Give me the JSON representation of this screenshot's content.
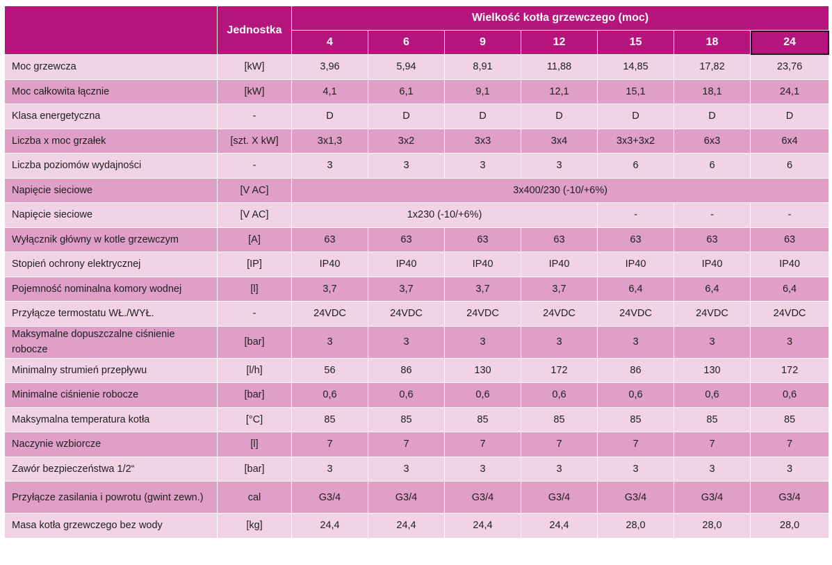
{
  "header": {
    "unit_label": "Jednostka",
    "group_label": "Wielkość kotła grzewczego (moc)",
    "sizes": [
      "4",
      "6",
      "9",
      "12",
      "15",
      "18",
      "24"
    ]
  },
  "rows": [
    {
      "name": "Moc grzewcza",
      "unit": "[kW]",
      "values": [
        "3,96",
        "5,94",
        "8,91",
        "11,88",
        "14,85",
        "17,82",
        "23,76"
      ]
    },
    {
      "name": "Moc całkowita łącznie",
      "unit": "[kW]",
      "values": [
        "4,1",
        "6,1",
        "9,1",
        "12,1",
        "15,1",
        "18,1",
        "24,1"
      ]
    },
    {
      "name": "Klasa energetyczna",
      "unit": "-",
      "values": [
        "D",
        "D",
        "D",
        "D",
        "D",
        "D",
        "D"
      ]
    },
    {
      "name": "Liczba x moc grzałek",
      "unit": "[szt. X kW]",
      "values": [
        "3x1,3",
        "3x2",
        "3x3",
        "3x4",
        "3x3+3x2",
        "6x3",
        "6x4"
      ]
    },
    {
      "name": "Liczba poziomów wydajności",
      "unit": "-",
      "values": [
        "3",
        "3",
        "3",
        "3",
        "6",
        "6",
        "6"
      ]
    },
    {
      "name": "Napięcie sieciowe",
      "unit": "[V AC]",
      "span_all": "3x400/230 (-10/+6%)"
    },
    {
      "name": "Napięcie sieciowe",
      "unit": "[V AC]",
      "span_first4": "1x230 (-10/+6%)",
      "rest": [
        "-",
        "-",
        "-"
      ]
    },
    {
      "name": "Wyłącznik główny w kotle grzewczym",
      "unit": "[A]",
      "values": [
        "63",
        "63",
        "63",
        "63",
        "63",
        "63",
        "63"
      ]
    },
    {
      "name": "Stopień ochrony elektrycznej",
      "unit": "[IP]",
      "values": [
        "IP40",
        "IP40",
        "IP40",
        "IP40",
        "IP40",
        "IP40",
        "IP40"
      ]
    },
    {
      "name": "Pojemność nominalna komory wodnej",
      "unit": "[l]",
      "values": [
        "3,7",
        "3,7",
        "3,7",
        "3,7",
        "6,4",
        "6,4",
        "6,4"
      ]
    },
    {
      "name": "Przyłącze termostatu WŁ./WYŁ.",
      "unit": "-",
      "values": [
        "24VDC",
        "24VDC",
        "24VDC",
        "24VDC",
        "24VDC",
        "24VDC",
        "24VDC"
      ]
    },
    {
      "name": "Maksymalne dopuszczalne ciśnienie robocze",
      "unit": "[bar]",
      "values": [
        "3",
        "3",
        "3",
        "3",
        "3",
        "3",
        "3"
      ],
      "tall": true
    },
    {
      "name": "Minimalny strumień przepływu",
      "unit": "[l/h]",
      "values": [
        "56",
        "86",
        "130",
        "172",
        "86",
        "130",
        "172"
      ]
    },
    {
      "name": "Minimalne ciśnienie robocze",
      "unit": "[bar]",
      "values": [
        "0,6",
        "0,6",
        "0,6",
        "0,6",
        "0,6",
        "0,6",
        "0,6"
      ]
    },
    {
      "name": "Maksymalna temperatura kotła",
      "unit": "[°C]",
      "values": [
        "85",
        "85",
        "85",
        "85",
        "85",
        "85",
        "85"
      ]
    },
    {
      "name": "Naczynie wzbiorcze",
      "unit": "[l]",
      "values": [
        "7",
        "7",
        "7",
        "7",
        "7",
        "7",
        "7"
      ]
    },
    {
      "name": "Zawór bezpieczeństwa 1/2“",
      "unit": "[bar]",
      "values": [
        "3",
        "3",
        "3",
        "3",
        "3",
        "3",
        "3"
      ]
    },
    {
      "name": "Przyłącze zasilania i powrotu (gwint zewn.)",
      "unit": "cal",
      "values": [
        "G3/4",
        "G3/4",
        "G3/4",
        "G3/4",
        "G3/4",
        "G3/4",
        "G3/4"
      ],
      "tall": true
    },
    {
      "name": "Masa kotła grzewczego bez wody",
      "unit": "[kg]",
      "values": [
        "24,4",
        "24,4",
        "24,4",
        "24,4",
        "28,0",
        "28,0",
        "28,0"
      ]
    }
  ],
  "colors": {
    "header": "#b5157d",
    "row_light": "#f2d3e6",
    "row_dark": "#df9fc7"
  }
}
